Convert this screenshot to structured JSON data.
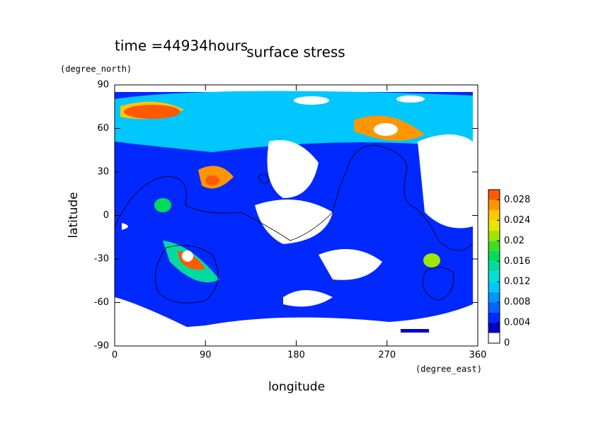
{
  "chart_data": {
    "type": "contour",
    "title": "surface stress",
    "annotation": "time =44934hours",
    "x_label": "longitude",
    "y_label": "latitude",
    "x_units": "(degree_east)",
    "y_units": "(degree_north)",
    "xlim": [
      0,
      360
    ],
    "ylim": [
      -90,
      90
    ],
    "xticks": [
      0,
      90,
      180,
      270,
      360
    ],
    "yticks": [
      -90,
      -60,
      -30,
      0,
      30,
      60,
      90
    ],
    "levels": [
      0,
      0.002,
      0.004,
      0.006,
      0.008,
      0.01,
      0.012,
      0.014,
      0.016,
      0.018,
      0.02,
      0.022,
      0.024,
      0.026,
      0.028,
      0.03
    ],
    "colors": [
      "#ffffff",
      "#0000c8",
      "#0028ff",
      "#0064ff",
      "#0096ff",
      "#00c8ff",
      "#00e0d8",
      "#00dca0",
      "#00dc5a",
      "#3cdc28",
      "#a0e600",
      "#e6e600",
      "#ffc800",
      "#ff9600",
      "#ff5a00"
    ],
    "colorbar_ticks": [
      0,
      0.004,
      0.008,
      0.012,
      0.016,
      0.02,
      0.024,
      0.028
    ]
  }
}
